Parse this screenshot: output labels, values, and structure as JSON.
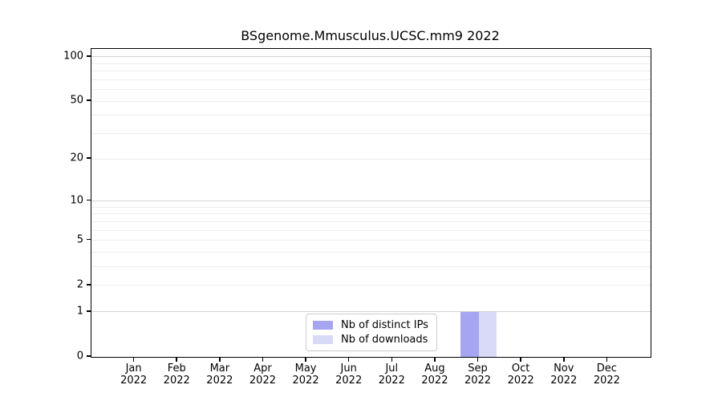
{
  "title": "BSgenome.Mmusculus.UCSC.mm9 2022",
  "chart_data": {
    "type": "bar",
    "title": "BSgenome.Mmusculus.UCSC.mm9 2022",
    "categories": [
      "Jan",
      "Feb",
      "Mar",
      "Apr",
      "May",
      "Jun",
      "Jul",
      "Aug",
      "Sep",
      "Oct",
      "Nov",
      "Dec"
    ],
    "category_year": "2022",
    "series": [
      {
        "name": "Nb of distinct IPs",
        "color": "#a5a5f2",
        "values": [
          0,
          0,
          0,
          0,
          0,
          0,
          0,
          0,
          1,
          0,
          0,
          0
        ]
      },
      {
        "name": "Nb of downloads",
        "color": "#d9d9f8",
        "values": [
          0,
          0,
          0,
          0,
          0,
          0,
          0,
          0,
          1,
          0,
          0,
          0
        ]
      }
    ],
    "yscale": "log1p",
    "yticks": [
      0,
      1,
      2,
      5,
      10,
      20,
      50,
      100
    ],
    "ylim": [
      0,
      113
    ],
    "grid": {
      "major": [
        1,
        10,
        100
      ],
      "minor": [
        2,
        3,
        4,
        5,
        6,
        7,
        8,
        9,
        20,
        30,
        40,
        50,
        60,
        70,
        80,
        90
      ],
      "major_color": "#d2d2d2",
      "minor_color": "#ececec"
    },
    "legend_position": "bottom-center"
  },
  "colors": {
    "spine": "#000000",
    "background": "#ffffff",
    "text": "#000000"
  }
}
